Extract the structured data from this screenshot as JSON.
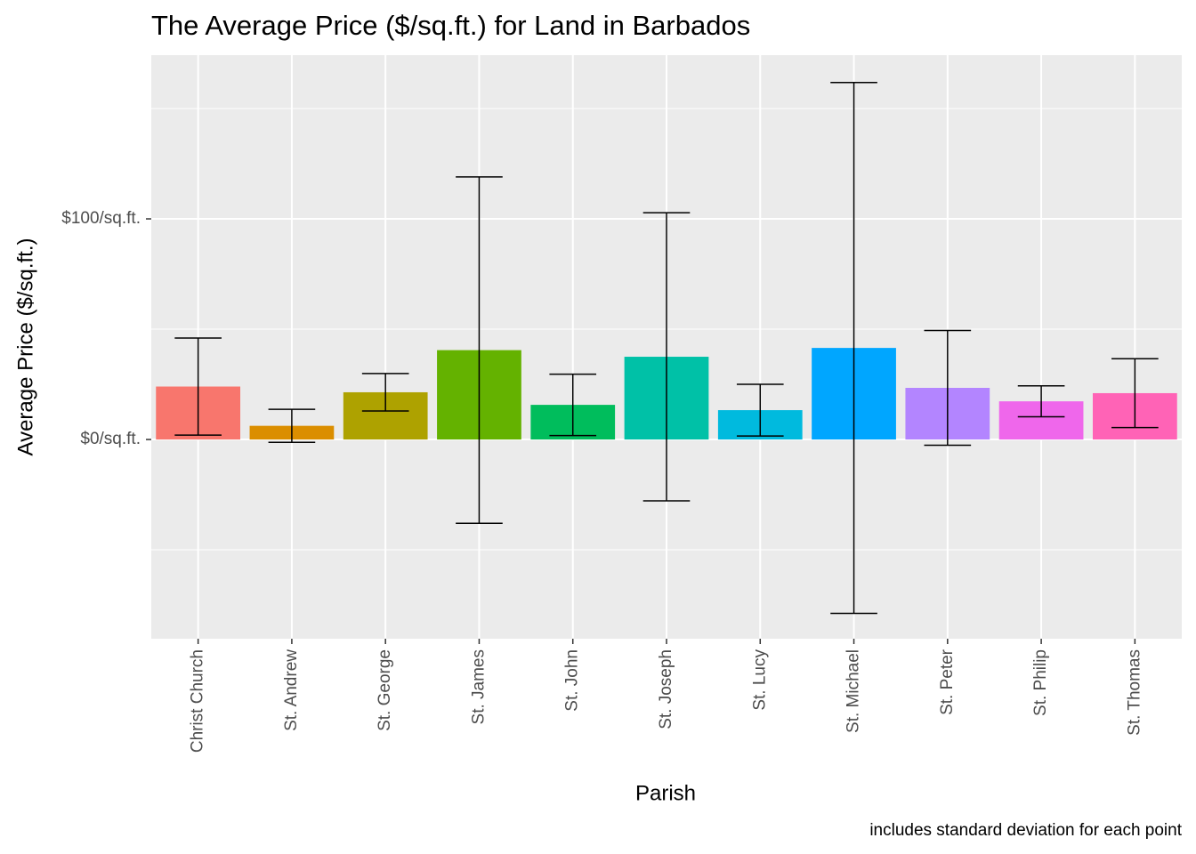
{
  "chart_data": {
    "type": "bar",
    "title": "The Average Price ($/sq.ft.) for Land in Barbados",
    "x_label": "Parish",
    "y_label": "Average Price ($/sq.ft.)",
    "caption": "includes standard deviation for each point",
    "categories": [
      "Christ Church",
      "St. Andrew",
      "St. George",
      "St. James",
      "St. John",
      "St. Joseph",
      "St. Lucy",
      "St. Michael",
      "St. Peter",
      "St. Philip",
      "St. Thomas"
    ],
    "values": [
      24,
      6.2,
      21.4,
      40.5,
      15.7,
      37.5,
      13.3,
      41.5,
      23.4,
      17.3,
      21
    ],
    "errors": [
      22,
      7.5,
      8.5,
      78.5,
      13.9,
      65.3,
      11.7,
      120.3,
      26,
      7,
      15.6
    ],
    "colors": [
      "#F8766D",
      "#DB8E00",
      "#AEA200",
      "#64B200",
      "#00BD5C",
      "#00C1A7",
      "#00BADE",
      "#00A6FF",
      "#B385FF",
      "#EF67EB",
      "#FF63B6"
    ],
    "ylim": [
      -90.3,
      174.2
    ],
    "yticks": [
      {
        "value": 0,
        "label": "$0/sq.ft."
      },
      {
        "value": 100,
        "label": "$100/sq.ft."
      }
    ],
    "minor_yticks": [
      -50,
      50,
      150
    ],
    "grid": true
  }
}
